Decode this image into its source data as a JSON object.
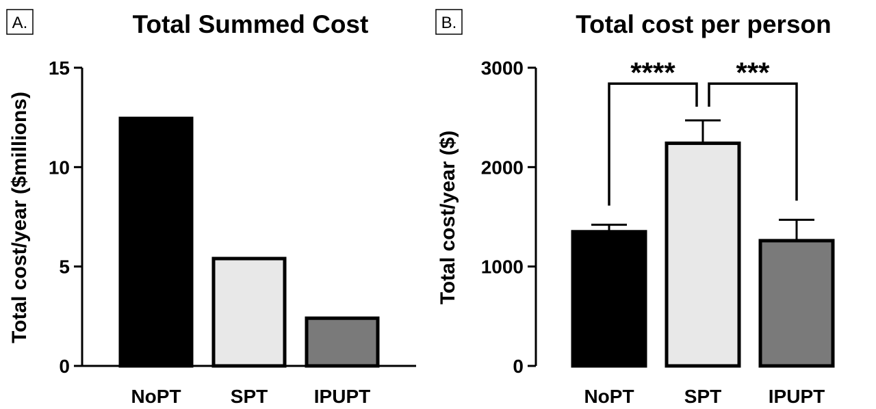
{
  "panels": {
    "A": {
      "letter": "A."
    },
    "B": {
      "letter": "B."
    }
  },
  "chart_data": [
    {
      "type": "bar",
      "title": "Total Summed Cost",
      "ylabel": "Total cost/year ($millions)",
      "xlabel": "",
      "categories": [
        "NoPT",
        "SPT",
        "IPUPT"
      ],
      "values": [
        12.45,
        5.4,
        2.4
      ],
      "ylim": [
        0,
        15
      ],
      "yticks": [
        0,
        5,
        10,
        15
      ],
      "colors": [
        "#000000",
        "#e8e8e8",
        "#7a7a7a"
      ],
      "grid": false
    },
    {
      "type": "bar",
      "title": "Total cost per person",
      "ylabel": "Total cost/year ($)",
      "xlabel": "",
      "categories": [
        "NoPT",
        "SPT",
        "IPUPT"
      ],
      "values": [
        1350,
        2240,
        1260
      ],
      "error_upper": [
        1420,
        2470,
        1470
      ],
      "ylim": [
        0,
        3000
      ],
      "yticks": [
        0,
        1000,
        2000,
        3000
      ],
      "colors": [
        "#000000",
        "#e8e8e8",
        "#7a7a7a"
      ],
      "grid": false,
      "significance": [
        {
          "from": "NoPT",
          "to": "SPT",
          "label": "****"
        },
        {
          "from": "SPT",
          "to": "IPUPT",
          "label": "***"
        }
      ]
    }
  ]
}
